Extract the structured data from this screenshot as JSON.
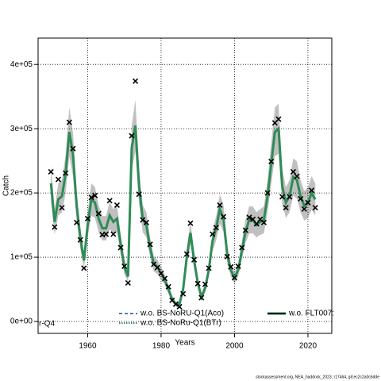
{
  "chart_data": {
    "type": "line",
    "xlabel": "Years",
    "ylabel": "Catch",
    "grid": true,
    "x": [
      1950,
      1951,
      1952,
      1953,
      1954,
      1955,
      1956,
      1957,
      1958,
      1959,
      1960,
      1961,
      1962,
      1963,
      1964,
      1965,
      1966,
      1967,
      1968,
      1969,
      1970,
      1971,
      1972,
      1973,
      1974,
      1975,
      1976,
      1977,
      1978,
      1979,
      1980,
      1981,
      1982,
      1983,
      1984,
      1985,
      1986,
      1987,
      1988,
      1989,
      1990,
      1991,
      1992,
      1993,
      1994,
      1995,
      1996,
      1997,
      1998,
      1999,
      2000,
      2001,
      2002,
      2003,
      2004,
      2005,
      2006,
      2007,
      2008,
      2009,
      2010,
      2011,
      2012,
      2013,
      2014,
      2015,
      2016,
      2017,
      2018,
      2019,
      2020,
      2021,
      2022
    ],
    "xlim": [
      1946.5,
      2026.5
    ],
    "xticks": [
      1960,
      1980,
      2000,
      2020
    ],
    "ylim": [
      -18500,
      441000
    ],
    "yticks": [
      {
        "value": 0,
        "label": "0e+00"
      },
      {
        "value": 100000,
        "label": "1e+05"
      },
      {
        "value": 200000,
        "label": "2e+05"
      },
      {
        "value": 300000,
        "label": "3e+05"
      },
      {
        "value": 400000,
        "label": "4e+05"
      }
    ],
    "estimate": {
      "color": "#2e8b57",
      "values": [
        215000.0,
        155000.0,
        190000.0,
        195000.0,
        230000.0,
        295000.0,
        260000.0,
        180000.0,
        130000.0,
        95000.0,
        150000.0,
        190000.0,
        185000.0,
        160000.0,
        145000.0,
        145000.0,
        165000.0,
        155000.0,
        160000.0,
        120000.0,
        85000.0,
        70000.0,
        270000.0,
        305000.0,
        210000.0,
        160000.0,
        150000.0,
        115000.0,
        90000.0,
        85000.0,
        75000.0,
        65000.0,
        50000.0,
        35000.0,
        27000.0,
        27000.0,
        50000.0,
        100000.0,
        138000.0,
        95000.0,
        60000.0,
        38000.0,
        52000.0,
        80000.0,
        125000.0,
        145000.0,
        175000.0,
        160000.0,
        105000.0,
        80000.0,
        68000.0,
        80000.0,
        110000.0,
        140000.0,
        158000.0,
        158000.0,
        150000.0,
        155000.0,
        158000.0,
        195000.0,
        245000.0,
        295000.0,
        300000.0,
        210000.0,
        185000.0,
        195000.0,
        225000.0,
        220000.0,
        195000.0,
        180000.0,
        185000.0,
        200000.0,
        190000.0
      ]
    },
    "band": {
      "color": "#c0c0c0",
      "lower": [
        187000.0,
        135000.0,
        165000.0,
        170000.0,
        200000.0,
        257000.0,
        226000.0,
        157000.0,
        113000.0,
        83000.0,
        131000.0,
        165000.0,
        161000.0,
        139000.0,
        126000.0,
        126000.0,
        144000.0,
        135000.0,
        139000.0,
        104000.0,
        74000.0,
        61000.0,
        235000.0,
        265000.0,
        183000.0,
        139000.0,
        131000.0,
        100000.0,
        78000.0,
        74000.0,
        65000.0,
        57000.0,
        44000.0,
        30000.0,
        23000.0,
        23000.0,
        44000.0,
        87000.0,
        120000.0,
        83000.0,
        52000.0,
        33000.0,
        45000.0,
        70000.0,
        109000.0,
        126000.0,
        152000.0,
        139000.0,
        91000.0,
        70000.0,
        59000.0,
        70000.0,
        96000.0,
        122000.0,
        137000.0,
        137000.0,
        131000.0,
        135000.0,
        137000.0,
        170000.0,
        213000.0,
        257000.0,
        261000.0,
        183000.0,
        161000.0,
        170000.0,
        196000.0,
        191000.0,
        170000.0,
        157000.0,
        161000.0,
        174000.0,
        165000.0
      ],
      "upper": [
        243000.0,
        175000.0,
        215000.0,
        220000.0,
        260000.0,
        333000.0,
        294000.0,
        203000.0,
        147000.0,
        107000.0,
        170000.0,
        215000.0,
        209000.0,
        181000.0,
        164000.0,
        164000.0,
        186000.0,
        175000.0,
        181000.0,
        136000.0,
        96000.0,
        79000.0,
        305000.0,
        345000.0,
        237000.0,
        181000.0,
        170000.0,
        130000.0,
        102000.0,
        96000.0,
        85000.0,
        73000.0,
        57000.0,
        40000.0,
        31000.0,
        31000.0,
        57000.0,
        113000.0,
        156000.0,
        107000.0,
        68000.0,
        43000.0,
        59000.0,
        90000.0,
        141000.0,
        164000.0,
        198000.0,
        181000.0,
        119000.0,
        90000.0,
        77000.0,
        90000.0,
        124000.0,
        158000.0,
        179000.0,
        179000.0,
        170000.0,
        175000.0,
        179000.0,
        220000.0,
        277000.0,
        333000.0,
        339000.0,
        237000.0,
        209000.0,
        220000.0,
        254000.0,
        249000.0,
        220000.0,
        203000.0,
        209000.0,
        226000.0,
        215000.0
      ]
    },
    "observed": {
      "color": "#000000",
      "values": [
        233000.0,
        147000.0,
        221000.0,
        177000.0,
        231000.0,
        310000.0,
        269000.0,
        154000.0,
        127000.0,
        83000.0,
        160000.0,
        193000.0,
        196000.0,
        168000.0,
        135000.0,
        136000.0,
        188000.0,
        136000.0,
        181000.0,
        115000.0,
        86000.0,
        60000.0,
        289000.0,
        374000.0,
        198000.0,
        158000.0,
        154000.0,
        120000.0,
        89000.0,
        84000.0,
        75000.0,
        67000.0,
        54000.0,
        33000.0,
        27000.0,
        23000.0,
        43000.0,
        105000.0,
        153000.0,
        96000.0,
        59000.0,
        37000.0,
        58000.0,
        83000.0,
        136000.0,
        146000.0,
        181000.0,
        163000.0,
        101000.0,
        85000.0,
        68000.0,
        86000.0,
        115000.0,
        142000.0,
        162000.0,
        159000.0,
        152000.0,
        159000.0,
        154000.0,
        200000.0,
        249000.0,
        309000.0,
        315000.0,
        194000.0,
        177000.0,
        194000.0,
        233000.0,
        226000.0,
        191000.0,
        175000.0,
        185000.0,
        204000.0,
        177000.0
      ]
    },
    "legend": [
      {
        "name": "w.o. BS-NoRU-Q1(Aco)",
        "color": "#1f4e9a",
        "dash": "4,3"
      },
      {
        "name": "w.o. BS-NoRu-Q1(BTr)",
        "color": "#0b5d3b",
        "dash": "1.5,1.5"
      },
      {
        "name": "w.o. FLT007:",
        "color": "#000000",
        "dash": "none"
      }
    ],
    "legend_fragment": "r-Q4"
  },
  "footer": "stockassessment.org, NEA_haddock_2023, r17464, git:ec2c2a0c6dde"
}
